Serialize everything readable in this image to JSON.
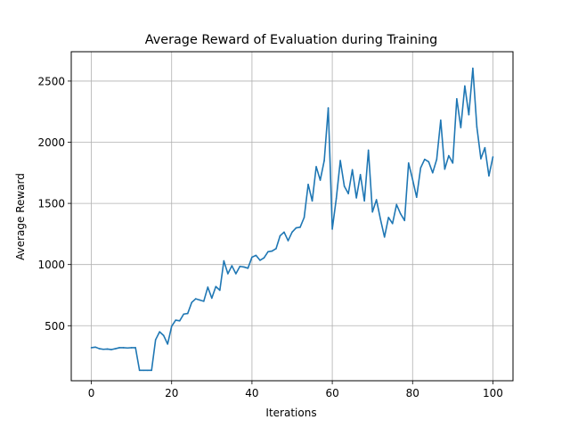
{
  "chart_data": {
    "type": "line",
    "title": "Average Reward of Evaluation during Training",
    "xlabel": "Iterations",
    "ylabel": "Average Reward",
    "xlim": [
      -5,
      105
    ],
    "ylim": [
      50,
      2740
    ],
    "x_ticks": [
      0,
      20,
      40,
      60,
      80,
      100
    ],
    "y_ticks": [
      500,
      1000,
      1500,
      2000,
      2500
    ],
    "grid": true,
    "line_color": "#1f77b4",
    "grid_color": "#b0b0b0",
    "series": [
      {
        "values": [
          {
            "x": 0,
            "y": 320
          },
          {
            "x": 1,
            "y": 325
          },
          {
            "x": 2,
            "y": 312
          },
          {
            "x": 3,
            "y": 307
          },
          {
            "x": 4,
            "y": 309
          },
          {
            "x": 5,
            "y": 305
          },
          {
            "x": 6,
            "y": 312
          },
          {
            "x": 7,
            "y": 320
          },
          {
            "x": 8,
            "y": 320
          },
          {
            "x": 9,
            "y": 318
          },
          {
            "x": 10,
            "y": 320
          },
          {
            "x": 11,
            "y": 320
          },
          {
            "x": 12,
            "y": 135
          },
          {
            "x": 13,
            "y": 135
          },
          {
            "x": 14,
            "y": 135
          },
          {
            "x": 15,
            "y": 135
          },
          {
            "x": 16,
            "y": 385
          },
          {
            "x": 17,
            "y": 450
          },
          {
            "x": 18,
            "y": 420
          },
          {
            "x": 19,
            "y": 350
          },
          {
            "x": 20,
            "y": 495
          },
          {
            "x": 21,
            "y": 545
          },
          {
            "x": 22,
            "y": 540
          },
          {
            "x": 23,
            "y": 595
          },
          {
            "x": 24,
            "y": 600
          },
          {
            "x": 25,
            "y": 690
          },
          {
            "x": 26,
            "y": 720
          },
          {
            "x": 27,
            "y": 710
          },
          {
            "x": 28,
            "y": 700
          },
          {
            "x": 29,
            "y": 815
          },
          {
            "x": 30,
            "y": 725
          },
          {
            "x": 31,
            "y": 820
          },
          {
            "x": 32,
            "y": 790
          },
          {
            "x": 33,
            "y": 1030
          },
          {
            "x": 34,
            "y": 925
          },
          {
            "x": 35,
            "y": 990
          },
          {
            "x": 36,
            "y": 925
          },
          {
            "x": 37,
            "y": 985
          },
          {
            "x": 38,
            "y": 980
          },
          {
            "x": 39,
            "y": 970
          },
          {
            "x": 40,
            "y": 1060
          },
          {
            "x": 41,
            "y": 1075
          },
          {
            "x": 42,
            "y": 1035
          },
          {
            "x": 43,
            "y": 1055
          },
          {
            "x": 44,
            "y": 1105
          },
          {
            "x": 45,
            "y": 1110
          },
          {
            "x": 46,
            "y": 1130
          },
          {
            "x": 47,
            "y": 1235
          },
          {
            "x": 48,
            "y": 1265
          },
          {
            "x": 49,
            "y": 1195
          },
          {
            "x": 50,
            "y": 1265
          },
          {
            "x": 51,
            "y": 1300
          },
          {
            "x": 52,
            "y": 1305
          },
          {
            "x": 53,
            "y": 1385
          },
          {
            "x": 54,
            "y": 1655
          },
          {
            "x": 55,
            "y": 1520
          },
          {
            "x": 56,
            "y": 1800
          },
          {
            "x": 57,
            "y": 1690
          },
          {
            "x": 58,
            "y": 1850
          },
          {
            "x": 59,
            "y": 2280
          },
          {
            "x": 60,
            "y": 1290
          },
          {
            "x": 61,
            "y": 1540
          },
          {
            "x": 62,
            "y": 1850
          },
          {
            "x": 63,
            "y": 1640
          },
          {
            "x": 64,
            "y": 1580
          },
          {
            "x": 65,
            "y": 1775
          },
          {
            "x": 66,
            "y": 1545
          },
          {
            "x": 67,
            "y": 1735
          },
          {
            "x": 68,
            "y": 1520
          },
          {
            "x": 69,
            "y": 1935
          },
          {
            "x": 70,
            "y": 1430
          },
          {
            "x": 71,
            "y": 1530
          },
          {
            "x": 72,
            "y": 1370
          },
          {
            "x": 73,
            "y": 1225
          },
          {
            "x": 74,
            "y": 1385
          },
          {
            "x": 75,
            "y": 1335
          },
          {
            "x": 76,
            "y": 1490
          },
          {
            "x": 77,
            "y": 1415
          },
          {
            "x": 78,
            "y": 1360
          },
          {
            "x": 79,
            "y": 1830
          },
          {
            "x": 80,
            "y": 1695
          },
          {
            "x": 81,
            "y": 1550
          },
          {
            "x": 82,
            "y": 1790
          },
          {
            "x": 83,
            "y": 1860
          },
          {
            "x": 84,
            "y": 1840
          },
          {
            "x": 85,
            "y": 1750
          },
          {
            "x": 86,
            "y": 1860
          },
          {
            "x": 87,
            "y": 2180
          },
          {
            "x": 88,
            "y": 1780
          },
          {
            "x": 89,
            "y": 1890
          },
          {
            "x": 90,
            "y": 1830
          },
          {
            "x": 91,
            "y": 2355
          },
          {
            "x": 92,
            "y": 2120
          },
          {
            "x": 93,
            "y": 2460
          },
          {
            "x": 94,
            "y": 2225
          },
          {
            "x": 95,
            "y": 2605
          },
          {
            "x": 96,
            "y": 2125
          },
          {
            "x": 97,
            "y": 1865
          },
          {
            "x": 98,
            "y": 1955
          },
          {
            "x": 99,
            "y": 1725
          },
          {
            "x": 100,
            "y": 1880
          }
        ]
      }
    ]
  }
}
